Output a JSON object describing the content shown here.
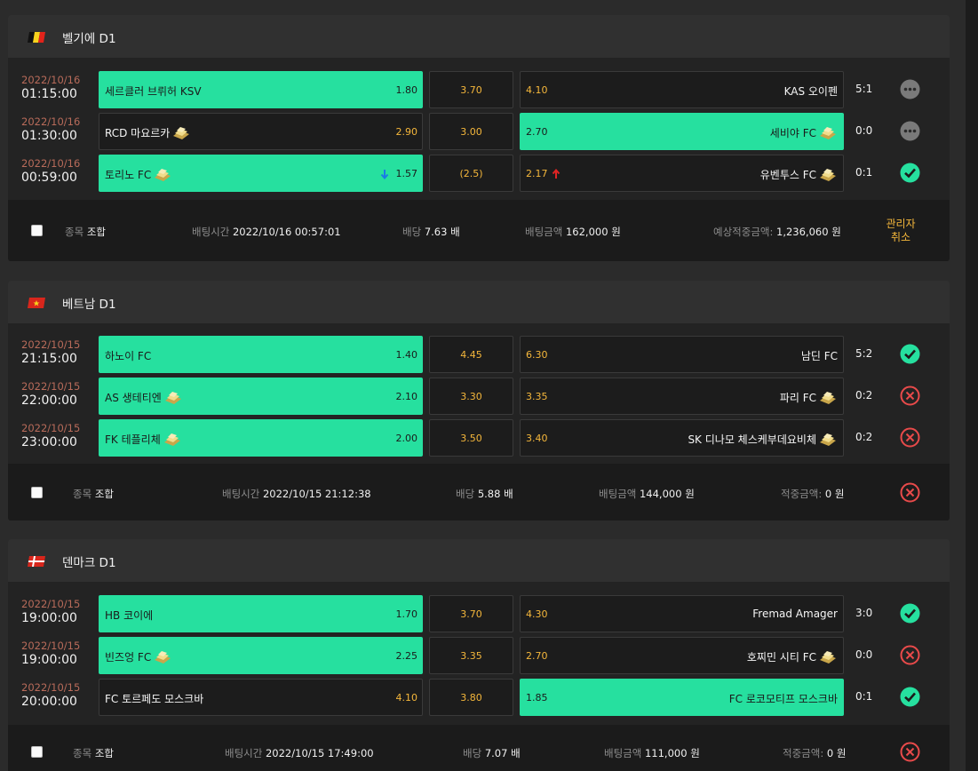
{
  "colors": {
    "green": "#26e09f",
    "odds_orange": "#f5b73b",
    "date_red": "#b86b5a",
    "lose_red": "#e84a4a",
    "pending_gray": "#7a7a7a"
  },
  "slips": [
    {
      "league": "벨기에 D1",
      "flag": "belgium-flag",
      "matches": [
        {
          "date": "2022/10/16",
          "time": "01:15:00",
          "home": "세르클러 브뤼허 KSV",
          "home_odds": "1.80",
          "draw": "3.70",
          "away": "KAS 오이펜",
          "away_odds": "4.10",
          "score": "5:1",
          "status": "pending"
        },
        {
          "date": "2022/10/16",
          "time": "01:30:00",
          "home": "RCD 마요르카",
          "home_odds": "2.90",
          "draw": "3.00",
          "away": "세비야 FC",
          "away_odds": "2.70",
          "score": "0:0",
          "status": "pending"
        },
        {
          "date": "2022/10/16",
          "time": "00:59:00",
          "home": "토리노 FC",
          "home_odds": "1.57",
          "draw": "(2.5)",
          "away": "유벤투스 FC",
          "away_odds": "2.17",
          "score": "0:1",
          "status": "win"
        }
      ],
      "summary": {
        "label": "종목",
        "value": "조합",
        "bet_time_label": "배팅시간",
        "bet_time": "2022/10/16 00:57:01",
        "odds_label": "배당",
        "odds": "7.63 배",
        "amount_label": "배팅금액",
        "amount": "162,000 원",
        "payout_label": "예상적중금액:",
        "payout": "1,236,060 원",
        "action": "관리자취소"
      }
    },
    {
      "league": "베트남 D1",
      "flag": "vietnam-flag",
      "matches": [
        {
          "date": "2022/10/15",
          "time": "21:15:00",
          "home": "하노이 FC",
          "home_odds": "1.40",
          "draw": "4.45",
          "away": "남딘 FC",
          "away_odds": "6.30",
          "score": "5:2",
          "status": "win"
        },
        {
          "date": "2022/10/15",
          "time": "22:00:00",
          "home": "AS 생테티엔",
          "home_odds": "2.10",
          "draw": "3.30",
          "away": "파리 FC",
          "away_odds": "3.35",
          "score": "0:2",
          "status": "lose"
        },
        {
          "date": "2022/10/15",
          "time": "23:00:00",
          "home": "FK 테플리체",
          "home_odds": "2.00",
          "draw": "3.50",
          "away": "SK 디나모 체스케부데요비체",
          "away_odds": "3.40",
          "score": "0:2",
          "status": "lose"
        }
      ],
      "summary": {
        "label": "종목",
        "value": "조합",
        "bet_time_label": "배팅시간",
        "bet_time": "2022/10/15 21:12:38",
        "odds_label": "배당",
        "odds": "5.88 배",
        "amount_label": "배팅금액",
        "amount": "144,000 원",
        "payout_label": "적중금액:",
        "payout": "0 원"
      }
    },
    {
      "league": "덴마크 D1",
      "flag": "denmark-flag",
      "matches": [
        {
          "date": "2022/10/15",
          "time": "19:00:00",
          "home": "HB 코이에",
          "home_odds": "1.70",
          "draw": "3.70",
          "away": "Fremad Amager",
          "away_odds": "4.30",
          "score": "3:0",
          "status": "win"
        },
        {
          "date": "2022/10/15",
          "time": "19:00:00",
          "home": "빈즈엉 FC",
          "home_odds": "2.25",
          "draw": "3.35",
          "away": "호찌민 시티 FC",
          "away_odds": "2.70",
          "score": "0:0",
          "status": "lose"
        },
        {
          "date": "2022/10/15",
          "time": "20:00:00",
          "home": "FC 토르페도 모스크바",
          "home_odds": "4.10",
          "draw": "3.80",
          "away": "FC 로코모티프 모스크바",
          "away_odds": "1.85",
          "score": "0:1",
          "status": "win"
        }
      ],
      "summary": {
        "label": "종목",
        "value": "조합",
        "bet_time_label": "배팅시간",
        "bet_time": "2022/10/15 17:49:00",
        "odds_label": "배당",
        "odds": "7.07 배",
        "amount_label": "배팅금액",
        "amount": "111,000 원",
        "payout_label": "적중금액:",
        "payout": "0 원"
      }
    }
  ]
}
